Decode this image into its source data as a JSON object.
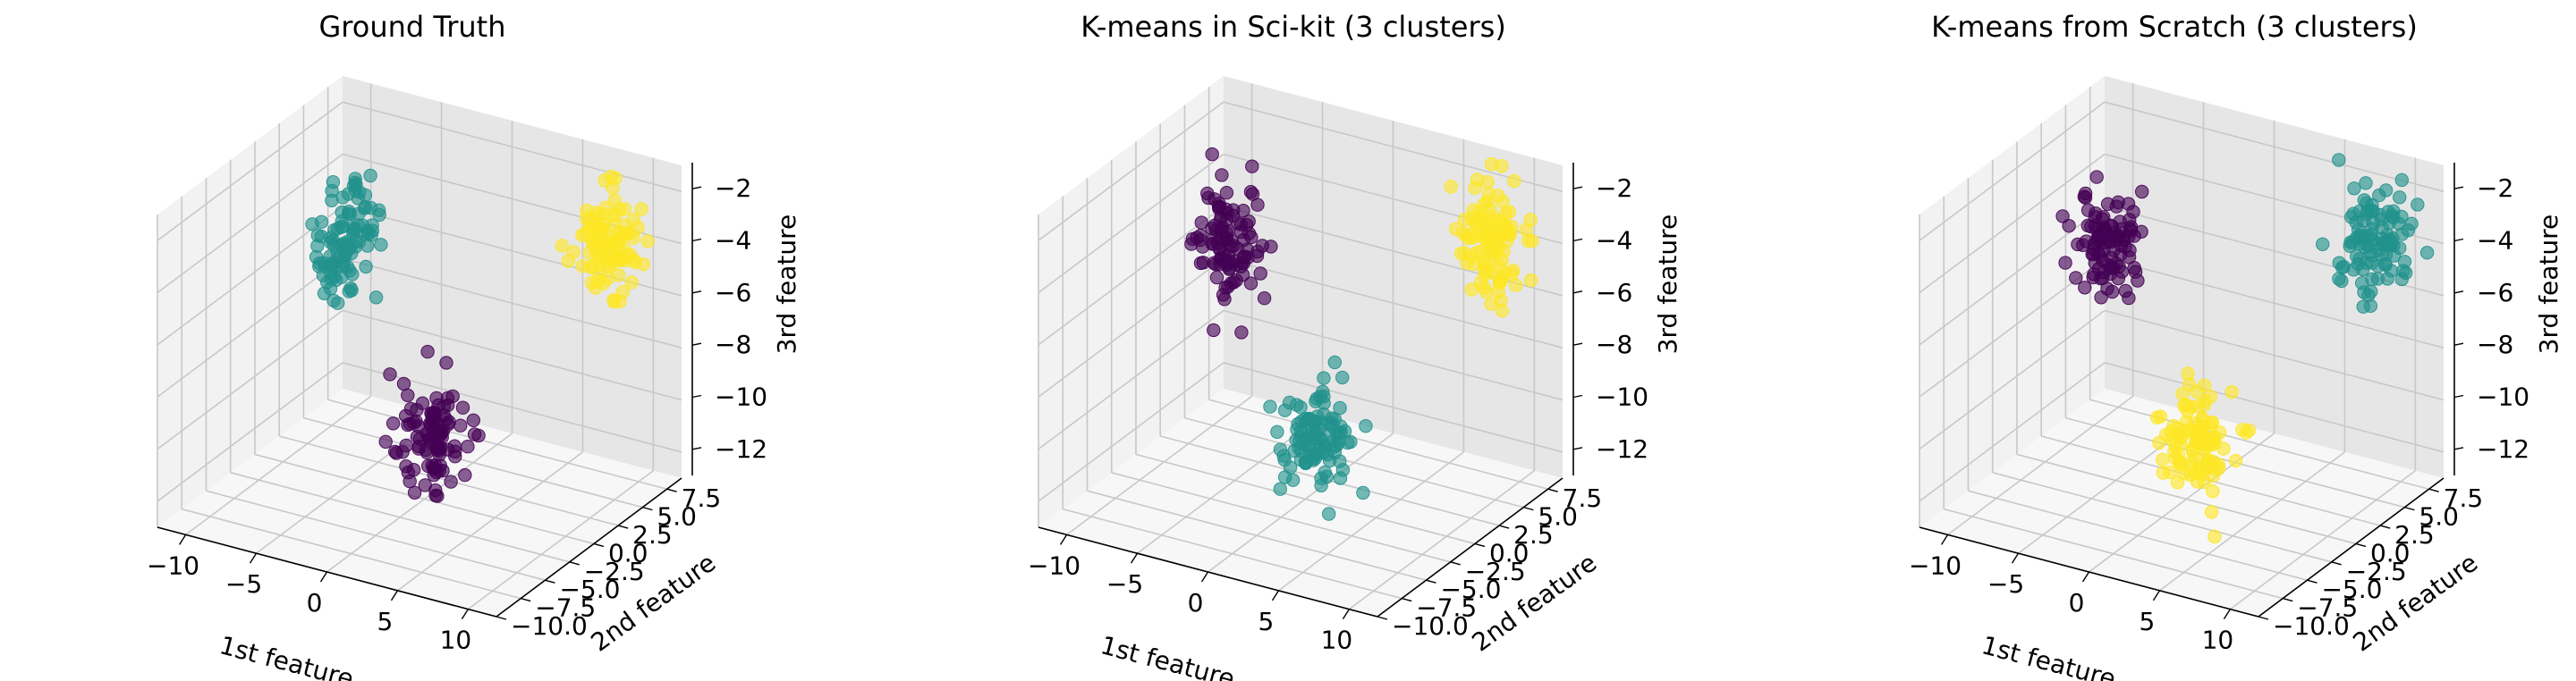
{
  "figure": {
    "colors": {
      "purple": "#440154",
      "teal": "#21918c",
      "yellow": "#fde725",
      "pane_side": "#f2f2f2",
      "pane_back": "#e6e6e6",
      "pane_floor": "#f7f7f7",
      "grid": "#c8c8c8"
    }
  },
  "chart_data": [
    {
      "type": "scatter",
      "projection": "3d",
      "title": "Ground Truth",
      "xlabel": "1st feature",
      "ylabel": "2nd feature",
      "zlabel": "3rd feature",
      "xlim": [
        -12,
        12
      ],
      "ylim": [
        -10,
        9
      ],
      "zlim": [
        -13,
        -1
      ],
      "xticks": [
        "−10",
        "−5",
        "0",
        "5",
        "10"
      ],
      "yticks": [
        "−10.0",
        "−7.5",
        "−5.0",
        "−2.5",
        "0.0",
        "2.5",
        "5.0",
        "7.5"
      ],
      "zticks": [
        "−12",
        "−10",
        "−8",
        "−6",
        "−4",
        "−2"
      ],
      "grid": true,
      "series": [
        {
          "color": "purple",
          "center": [
            7,
            -9,
            -7.2
          ],
          "spread": 1.05,
          "n": 100
        },
        {
          "color": "teal",
          "center": [
            -10.5,
            7.2,
            -6.6
          ],
          "spread": 1.05,
          "n": 100
        },
        {
          "color": "yellow",
          "center": [
            9,
            6,
            -3.5
          ],
          "spread": 1.05,
          "n": 100
        }
      ]
    },
    {
      "type": "scatter",
      "projection": "3d",
      "title": "K-means in Sci-kit (3 clusters)",
      "xlabel": "1st feature",
      "ylabel": "2nd feature",
      "zlabel": "3rd feature",
      "xlim": [
        -12,
        12
      ],
      "ylim": [
        -10,
        9
      ],
      "zlim": [
        -13,
        -1
      ],
      "xticks": [
        "−10",
        "−5",
        "0",
        "5",
        "10"
      ],
      "yticks": [
        "−10.0",
        "−7.5",
        "−5.0",
        "−2.5",
        "0.0",
        "2.5",
        "5.0",
        "7.5"
      ],
      "zticks": [
        "−12",
        "−10",
        "−8",
        "−6",
        "−4",
        "−2"
      ],
      "grid": true,
      "series": [
        {
          "color": "teal",
          "center": [
            7,
            -9,
            -7.2
          ],
          "spread": 1.05,
          "n": 100
        },
        {
          "color": "purple",
          "center": [
            -10.5,
            7.2,
            -6.6
          ],
          "spread": 1.05,
          "n": 100
        },
        {
          "color": "yellow",
          "center": [
            9,
            6,
            -3.5
          ],
          "spread": 1.05,
          "n": 100
        }
      ]
    },
    {
      "type": "scatter",
      "projection": "3d",
      "title": "K-means from Scratch (3 clusters)",
      "xlabel": "1st feature",
      "ylabel": "2nd feature",
      "zlabel": "3rd feature",
      "xlim": [
        -12,
        12
      ],
      "ylim": [
        -10,
        9
      ],
      "zlim": [
        -13,
        -1
      ],
      "xticks": [
        "−10",
        "−5",
        "0",
        "5",
        "10"
      ],
      "yticks": [
        "−10.0",
        "−7.5",
        "−5.0",
        "−2.5",
        "0.0",
        "2.5",
        "5.0",
        "7.5"
      ],
      "zticks": [
        "−12",
        "−10",
        "−8",
        "−6",
        "−4",
        "−2"
      ],
      "grid": true,
      "series": [
        {
          "color": "yellow",
          "center": [
            7,
            -9,
            -7.2
          ],
          "spread": 1.05,
          "n": 100
        },
        {
          "color": "purple",
          "center": [
            -10.5,
            7.2,
            -6.6
          ],
          "spread": 1.05,
          "n": 100
        },
        {
          "color": "teal",
          "center": [
            9,
            6,
            -3.5
          ],
          "spread": 1.05,
          "n": 100
        }
      ]
    }
  ]
}
